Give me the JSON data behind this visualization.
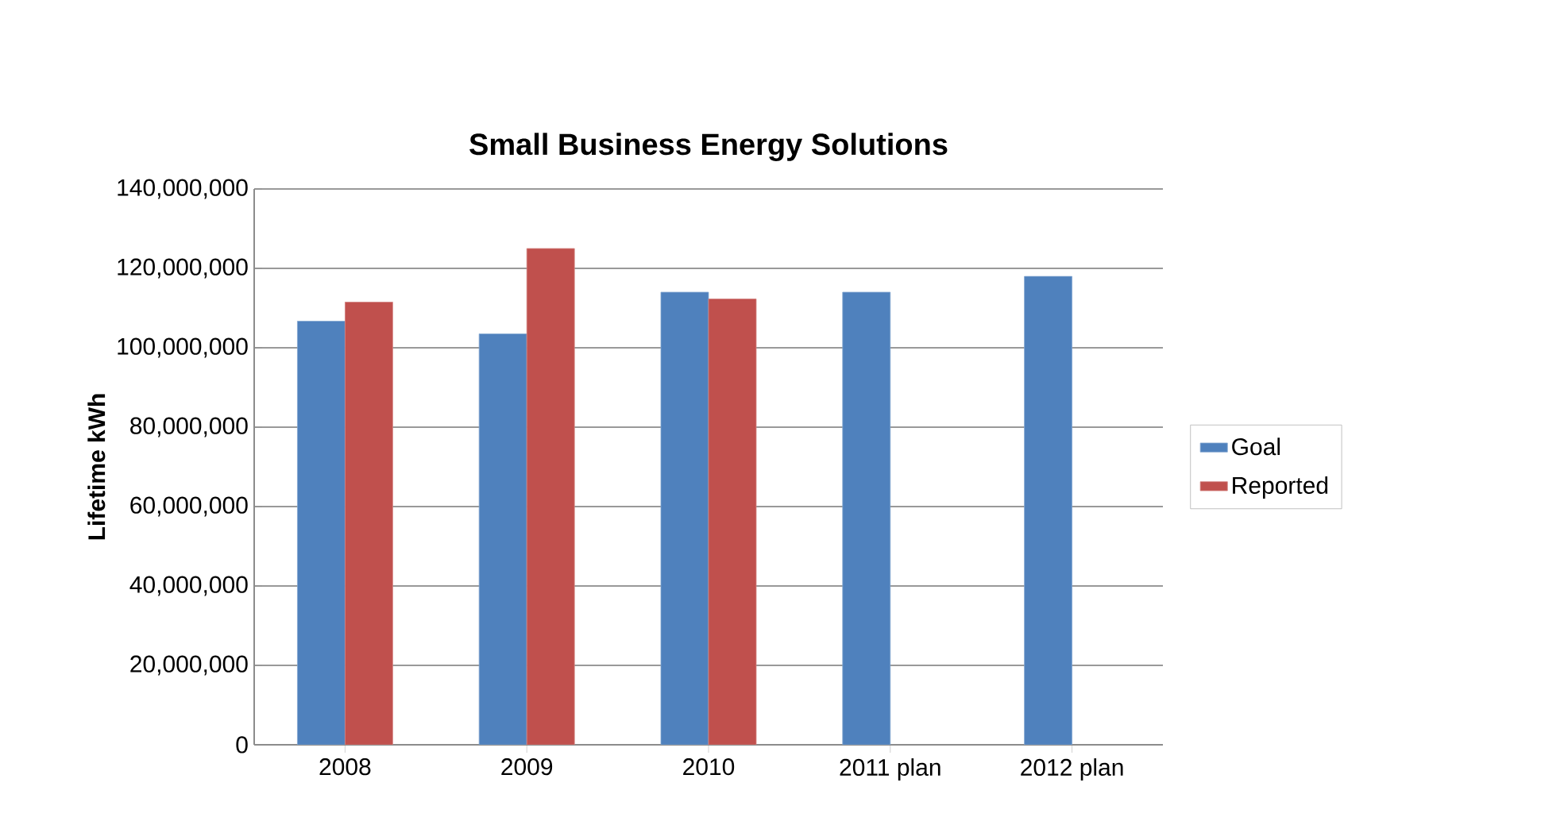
{
  "chart_data": {
    "type": "bar",
    "title": "Small Business Energy Solutions",
    "ylabel": "Lifetime kWh",
    "categories": [
      "2008",
      "2009",
      "2010",
      "2011 plan",
      "2012 plan"
    ],
    "series": [
      {
        "name": "Goal",
        "color": "#4f81bd",
        "values": [
          106700000,
          103500000,
          114000000,
          114000000,
          118000000
        ]
      },
      {
        "name": "Reported",
        "color": "#c0504d",
        "values": [
          111500000,
          125000000,
          112300000,
          null,
          null
        ]
      }
    ],
    "ylim": [
      0,
      140000000
    ],
    "yticks": [
      {
        "value": 0,
        "label": "0"
      },
      {
        "value": 20000000,
        "label": "20,000,000"
      },
      {
        "value": 40000000,
        "label": "40,000,000"
      },
      {
        "value": 60000000,
        "label": "60,000,000"
      },
      {
        "value": 80000000,
        "label": "80,000,000"
      },
      {
        "value": 100000000,
        "label": "100,000,000"
      },
      {
        "value": 120000000,
        "label": "120,000,000"
      },
      {
        "value": 140000000,
        "label": "140,000,000"
      }
    ],
    "grid": "y",
    "legend": "right"
  }
}
